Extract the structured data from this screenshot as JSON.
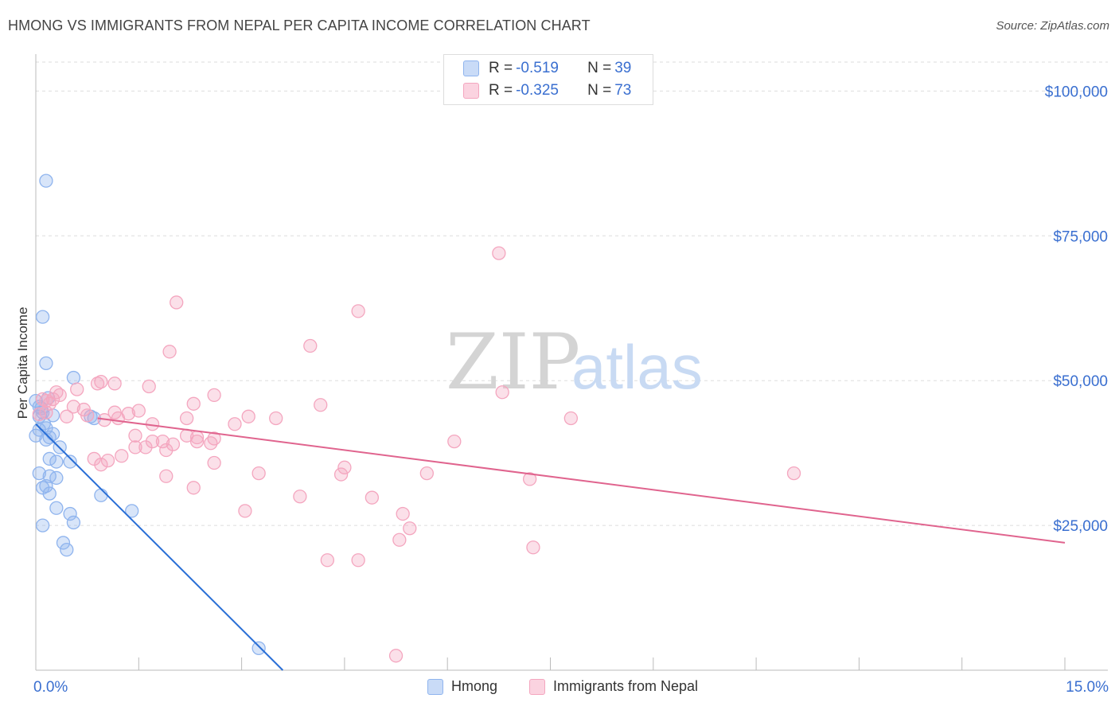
{
  "header": {
    "title": "HMONG VS IMMIGRANTS FROM NEPAL PER CAPITA INCOME CORRELATION CHART",
    "source": "Source: ZipAtlas.com"
  },
  "watermark": {
    "part1": "ZIP",
    "part2": "atlas"
  },
  "stats": [
    {
      "r_label": "R = ",
      "r_value": "-0.519",
      "n_label": "N = ",
      "n_value": "39",
      "color": "#8fb4ee"
    },
    {
      "r_label": "R = ",
      "r_value": "-0.325",
      "n_label": "N = ",
      "n_value": "73",
      "color": "#f4a6bf"
    }
  ],
  "legend": [
    {
      "label": "Hmong",
      "color": "#8fb4ee"
    },
    {
      "label": "Immigrants from Nepal",
      "color": "#f4a6bf"
    }
  ],
  "chart_data": {
    "type": "scatter",
    "ylabel": "Per Capita Income",
    "xlim": [
      0,
      15
    ],
    "ylim": [
      0,
      105000
    ],
    "x_tick_labels": [
      "0.0%",
      "15.0%"
    ],
    "y_ticks": [
      {
        "value": 25000,
        "label": "$25,000"
      },
      {
        "value": 50000,
        "label": "$50,000"
      },
      {
        "value": 75000,
        "label": "$75,000"
      },
      {
        "value": 100000,
        "label": "$100,000"
      }
    ],
    "grid": "horizontal dashed",
    "series": [
      {
        "name": "Hmong",
        "color": "#8fb4ee",
        "line_color": "#2a6fd6",
        "trend": [
          [
            0.0,
            42500
          ],
          [
            3.6,
            0
          ]
        ],
        "points": [
          [
            0.15,
            84500
          ],
          [
            0.1,
            61000
          ],
          [
            0.15,
            53000
          ],
          [
            0.55,
            50500
          ],
          [
            0.0,
            46500
          ],
          [
            0.05,
            45500
          ],
          [
            0.1,
            44500
          ],
          [
            0.85,
            43500
          ],
          [
            0.8,
            43800
          ],
          [
            0.05,
            41500
          ],
          [
            0.15,
            41800
          ],
          [
            0.0,
            40500
          ],
          [
            0.25,
            40800
          ],
          [
            0.15,
            39800
          ],
          [
            0.2,
            40200
          ],
          [
            0.35,
            38500
          ],
          [
            0.2,
            36500
          ],
          [
            0.3,
            36000
          ],
          [
            0.5,
            36000
          ],
          [
            0.05,
            34000
          ],
          [
            0.2,
            33500
          ],
          [
            0.1,
            31500
          ],
          [
            0.15,
            31800
          ],
          [
            0.2,
            30500
          ],
          [
            0.95,
            30200
          ],
          [
            0.3,
            28000
          ],
          [
            1.4,
            27500
          ],
          [
            0.5,
            27000
          ],
          [
            0.55,
            25500
          ],
          [
            0.1,
            25000
          ],
          [
            0.4,
            22000
          ],
          [
            0.45,
            20800
          ],
          [
            3.25,
            3800
          ],
          [
            0.05,
            43800
          ],
          [
            0.12,
            42600
          ],
          [
            0.08,
            45200
          ],
          [
            0.18,
            47000
          ],
          [
            0.3,
            33200
          ],
          [
            0.25,
            44000
          ]
        ]
      },
      {
        "name": "Immigrants from Nepal",
        "color": "#f4a6bf",
        "line_color": "#e0648e",
        "trend": [
          [
            0.9,
            43500
          ],
          [
            15.0,
            22000
          ]
        ],
        "points": [
          [
            6.75,
            72000
          ],
          [
            2.05,
            63500
          ],
          [
            4.7,
            62000
          ],
          [
            4.0,
            56000
          ],
          [
            1.95,
            55000
          ],
          [
            0.9,
            49500
          ],
          [
            0.95,
            49800
          ],
          [
            1.65,
            49000
          ],
          [
            6.8,
            48000
          ],
          [
            0.3,
            48000
          ],
          [
            0.35,
            47500
          ],
          [
            2.6,
            47500
          ],
          [
            0.25,
            46800
          ],
          [
            0.15,
            46500
          ],
          [
            0.2,
            46000
          ],
          [
            2.3,
            46000
          ],
          [
            4.15,
            45800
          ],
          [
            0.55,
            45500
          ],
          [
            0.7,
            45000
          ],
          [
            0.15,
            44500
          ],
          [
            1.15,
            44500
          ],
          [
            1.35,
            44300
          ],
          [
            0.75,
            44000
          ],
          [
            0.45,
            43800
          ],
          [
            1.2,
            43500
          ],
          [
            3.1,
            43800
          ],
          [
            3.5,
            43500
          ],
          [
            2.2,
            43500
          ],
          [
            1.0,
            43200
          ],
          [
            7.8,
            43500
          ],
          [
            1.7,
            42500
          ],
          [
            2.9,
            42500
          ],
          [
            1.45,
            40500
          ],
          [
            2.2,
            40500
          ],
          [
            2.35,
            40200
          ],
          [
            2.6,
            40000
          ],
          [
            1.7,
            39500
          ],
          [
            1.85,
            39500
          ],
          [
            2.0,
            39000
          ],
          [
            2.35,
            39500
          ],
          [
            2.55,
            39200
          ],
          [
            1.45,
            38500
          ],
          [
            1.6,
            38500
          ],
          [
            1.9,
            38000
          ],
          [
            1.25,
            37000
          ],
          [
            0.85,
            36500
          ],
          [
            1.05,
            36200
          ],
          [
            2.6,
            35800
          ],
          [
            0.95,
            35500
          ],
          [
            6.1,
            39500
          ],
          [
            4.5,
            35000
          ],
          [
            3.25,
            34000
          ],
          [
            5.7,
            34000
          ],
          [
            4.45,
            33800
          ],
          [
            11.05,
            34000
          ],
          [
            1.9,
            33500
          ],
          [
            7.2,
            33000
          ],
          [
            2.3,
            31500
          ],
          [
            3.85,
            30000
          ],
          [
            4.9,
            29800
          ],
          [
            3.05,
            27500
          ],
          [
            5.35,
            27000
          ],
          [
            5.45,
            24500
          ],
          [
            5.3,
            22500
          ],
          [
            7.25,
            21200
          ],
          [
            4.25,
            19000
          ],
          [
            4.7,
            19000
          ],
          [
            5.25,
            2500
          ],
          [
            0.05,
            44200
          ],
          [
            0.1,
            46800
          ],
          [
            0.6,
            48500
          ],
          [
            1.5,
            44800
          ],
          [
            1.15,
            49500
          ]
        ]
      }
    ]
  }
}
